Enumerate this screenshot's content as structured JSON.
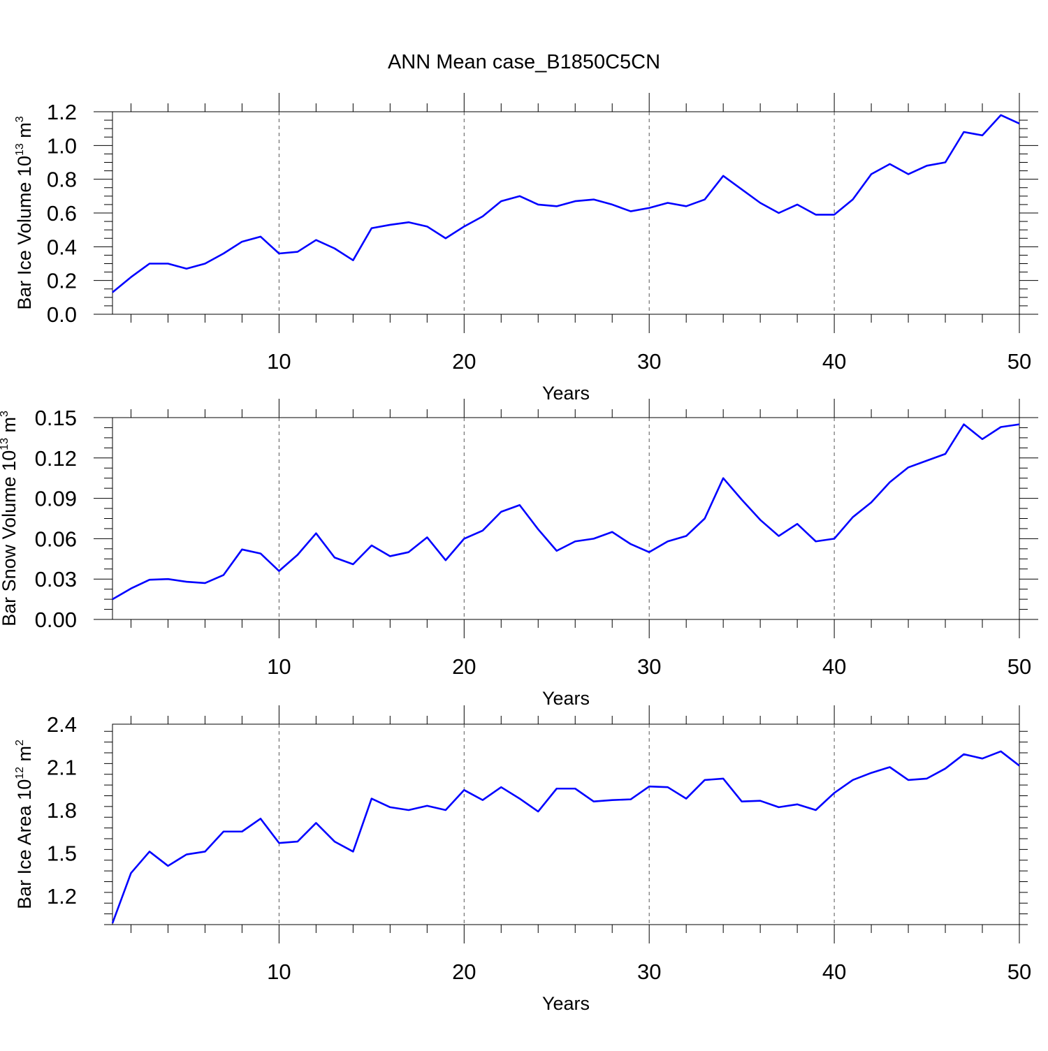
{
  "title": "ANN Mean case_B1850C5CN",
  "colors": {
    "line": "#0000ff",
    "axis": "#000000",
    "grid": "#555555"
  },
  "chart_data": [
    {
      "type": "line",
      "title": "",
      "xlabel": "Years",
      "ylabel": {
        "base": "Bar Ice Volume 10",
        "exp": "13",
        "unit": " m",
        "unit_exp": "3"
      },
      "xlim": [
        1,
        50
      ],
      "ylim": [
        0,
        1.2
      ],
      "xticks": [
        "10",
        "20",
        "30",
        "40",
        "50"
      ],
      "yticks": [
        "0.0",
        "0.2",
        "0.4",
        "0.6",
        "0.8",
        "1.0",
        "1.2"
      ],
      "grid": "vertical dashed at major x ticks",
      "x": [
        1,
        2,
        3,
        4,
        5,
        6,
        7,
        8,
        9,
        10,
        11,
        12,
        13,
        14,
        15,
        16,
        17,
        18,
        19,
        20,
        21,
        22,
        23,
        24,
        25,
        26,
        27,
        28,
        29,
        30,
        31,
        32,
        33,
        34,
        35,
        36,
        37,
        38,
        39,
        40,
        41,
        42,
        43,
        44,
        45,
        46,
        47,
        48,
        49,
        50
      ],
      "values": [
        0.13,
        0.22,
        0.3,
        0.3,
        0.27,
        0.3,
        0.36,
        0.43,
        0.46,
        0.36,
        0.37,
        0.44,
        0.39,
        0.32,
        0.51,
        0.53,
        0.545,
        0.52,
        0.45,
        0.52,
        0.58,
        0.67,
        0.7,
        0.65,
        0.64,
        0.67,
        0.68,
        0.65,
        0.61,
        0.63,
        0.66,
        0.64,
        0.68,
        0.82,
        0.74,
        0.66,
        0.6,
        0.65,
        0.59,
        0.59,
        0.68,
        0.83,
        0.89,
        0.83,
        0.88,
        0.9,
        1.08,
        1.06,
        1.18,
        1.13
      ]
    },
    {
      "type": "line",
      "title": "",
      "xlabel": "Years",
      "ylabel": {
        "base": "Bar Snow Volume 10",
        "exp": "13",
        "unit": " m",
        "unit_exp": "3"
      },
      "xlim": [
        1,
        50
      ],
      "ylim": [
        0,
        0.15
      ],
      "xticks": [
        "10",
        "20",
        "30",
        "40",
        "50"
      ],
      "yticks": [
        "0.00",
        "0.03",
        "0.06",
        "0.09",
        "0.12",
        "0.15"
      ],
      "grid": "vertical dashed at major x ticks",
      "x": [
        1,
        2,
        3,
        4,
        5,
        6,
        7,
        8,
        9,
        10,
        11,
        12,
        13,
        14,
        15,
        16,
        17,
        18,
        19,
        20,
        21,
        22,
        23,
        24,
        25,
        26,
        27,
        28,
        29,
        30,
        31,
        32,
        33,
        34,
        35,
        36,
        37,
        38,
        39,
        40,
        41,
        42,
        43,
        44,
        45,
        46,
        47,
        48,
        49,
        50
      ],
      "values": [
        0.015,
        0.023,
        0.0295,
        0.03,
        0.028,
        0.027,
        0.033,
        0.052,
        0.049,
        0.036,
        0.048,
        0.064,
        0.046,
        0.041,
        0.055,
        0.047,
        0.05,
        0.061,
        0.044,
        0.06,
        0.066,
        0.08,
        0.085,
        0.067,
        0.051,
        0.058,
        0.06,
        0.065,
        0.056,
        0.05,
        0.058,
        0.062,
        0.075,
        0.105,
        0.089,
        0.074,
        0.062,
        0.071,
        0.058,
        0.06,
        0.076,
        0.087,
        0.102,
        0.113,
        0.118,
        0.123,
        0.145,
        0.134,
        0.143,
        0.145
      ]
    },
    {
      "type": "line",
      "title": "",
      "xlabel": "Years",
      "ylabel": {
        "base": "Bar Ice Area 10",
        "exp": "12",
        "unit": " m",
        "unit_exp": "2"
      },
      "xlim": [
        1,
        50
      ],
      "ylim": [
        1.0,
        2.4
      ],
      "xticks": [
        "10",
        "20",
        "30",
        "40",
        "50"
      ],
      "yticks": [
        "1.2",
        "1.5",
        "1.8",
        "2.1",
        "2.4"
      ],
      "grid": "vertical dashed at major x ticks",
      "x": [
        1,
        2,
        3,
        4,
        5,
        6,
        7,
        8,
        9,
        10,
        11,
        12,
        13,
        14,
        15,
        16,
        17,
        18,
        19,
        20,
        21,
        22,
        23,
        24,
        25,
        26,
        27,
        28,
        29,
        30,
        31,
        32,
        33,
        34,
        35,
        36,
        37,
        38,
        39,
        40,
        41,
        42,
        43,
        44,
        45,
        46,
        47,
        48,
        49,
        50
      ],
      "values": [
        1.01,
        1.36,
        1.51,
        1.41,
        1.49,
        1.51,
        1.65,
        1.65,
        1.74,
        1.57,
        1.58,
        1.71,
        1.58,
        1.51,
        1.88,
        1.82,
        1.8,
        1.83,
        1.8,
        1.94,
        1.87,
        1.96,
        1.88,
        1.79,
        1.95,
        1.95,
        1.86,
        1.87,
        1.875,
        1.965,
        1.96,
        1.88,
        2.01,
        2.02,
        1.86,
        1.865,
        1.82,
        1.84,
        1.8,
        1.92,
        2.01,
        2.06,
        2.1,
        2.01,
        2.02,
        2.09,
        2.19,
        2.16,
        2.21,
        2.11
      ]
    }
  ]
}
